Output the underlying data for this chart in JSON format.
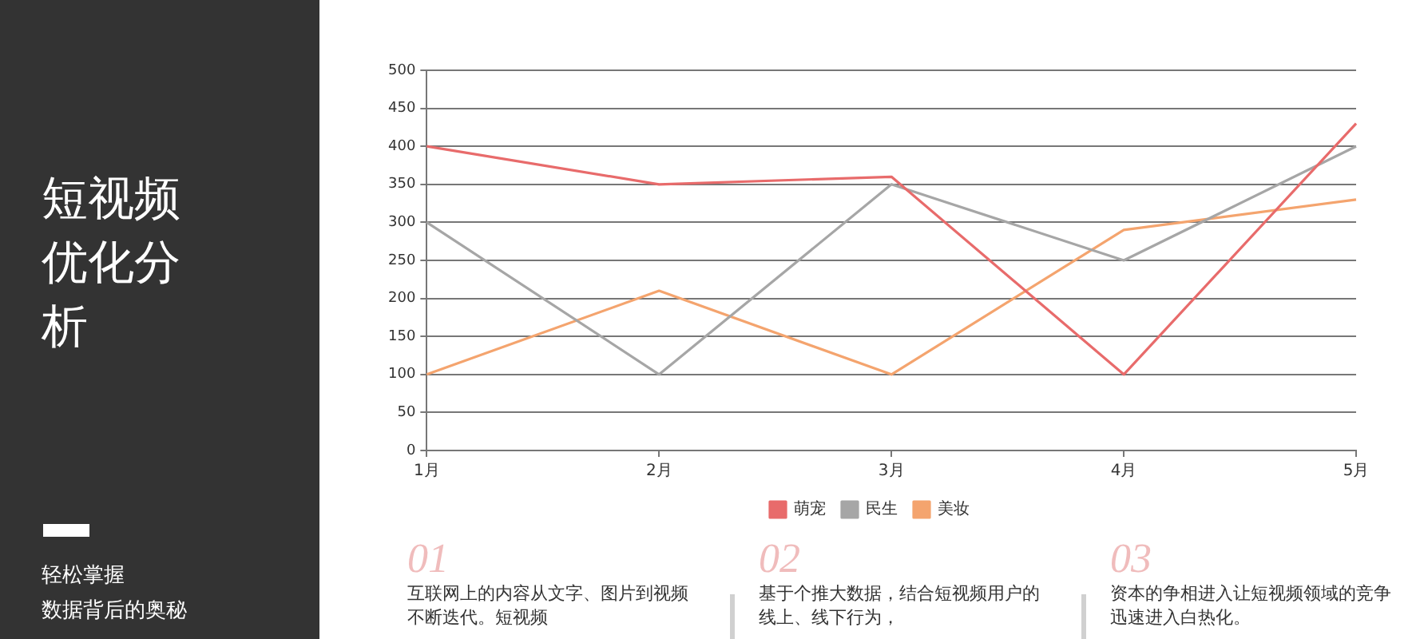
{
  "chart_data": {
    "type": "line",
    "title": "短视频优化分析",
    "subtitle": "轻松掌握数据背后的奥秘",
    "categories": [
      "1月",
      "2月",
      "3月",
      "4月",
      "5月"
    ],
    "series": [
      {
        "name": "萌宠",
        "color": "#e86b6b",
        "values": [
          400,
          350,
          360,
          100,
          430
        ]
      },
      {
        "name": "民生",
        "color": "#a6a6a6",
        "values": [
          300,
          100,
          350,
          250,
          400
        ]
      },
      {
        "name": "美妆",
        "color": "#f4a46e",
        "values": [
          100,
          210,
          100,
          290,
          330
        ]
      }
    ],
    "ylim": [
      0,
      500
    ],
    "yticks": [
      0,
      50,
      100,
      150,
      200,
      250,
      300,
      350,
      400,
      450,
      500
    ],
    "grid": "y",
    "legend": "bottom",
    "marker": "none",
    "line_style": "solid",
    "annotations": [
      "01",
      "互联网上的内容从文字、图片到视频不断迭代。短视频",
      "02",
      "基于个推大数据，结合短视频用户的线上、线下行为，",
      "03",
      "资本的争相进入让短视频领域的竞争迅速进入白热化。"
    ]
  }
}
